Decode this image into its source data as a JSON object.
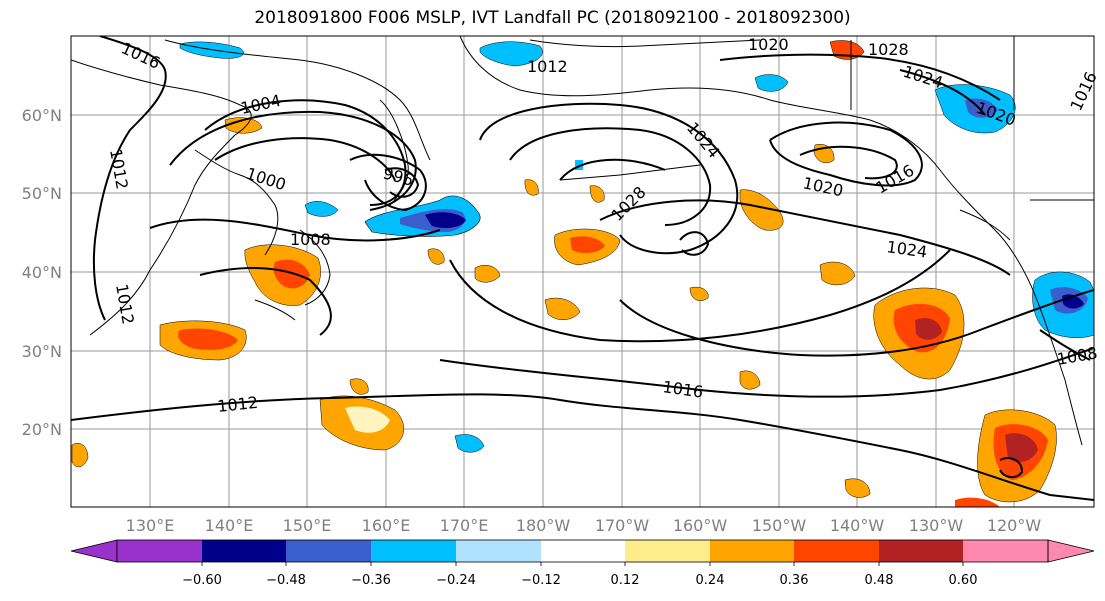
{
  "title": "2018091800 F006 MSLP, IVT Landfall PC (2018092100 - 2018092300)",
  "map": {
    "lat_labels": [
      "60°N",
      "50°N",
      "40°N",
      "30°N",
      "20°N"
    ],
    "lon_labels": [
      "130°E",
      "140°E",
      "150°E",
      "160°E",
      "170°E",
      "180°W",
      "170°W",
      "160°W",
      "150°W",
      "140°W",
      "130°W",
      "120°W"
    ],
    "isobar_labels": [
      "1016",
      "1004",
      "1012",
      "1000",
      "996",
      "1008",
      "1012",
      "1016",
      "1012",
      "1020",
      "1028",
      "1024",
      "1020",
      "1024",
      "1016",
      "1020",
      "1024",
      "1028",
      "1016",
      "1012",
      "1008"
    ],
    "colors": {
      "grid": "#9a9a9a",
      "coast": "#000000",
      "isobar": "#000000"
    }
  },
  "colorbar": {
    "ticks": [
      "−0.60",
      "−0.48",
      "−0.36",
      "−0.24",
      "−0.12",
      "0.12",
      "0.24",
      "0.36",
      "0.48",
      "0.60"
    ],
    "colors": [
      "#9932cc",
      "#00008b",
      "#3a5fcd",
      "#00bfff",
      "#b0e2ff",
      "#ffffff",
      "#ffec8b",
      "#ffa500",
      "#ff4500",
      "#b22222",
      "#ff88b0"
    ]
  }
}
